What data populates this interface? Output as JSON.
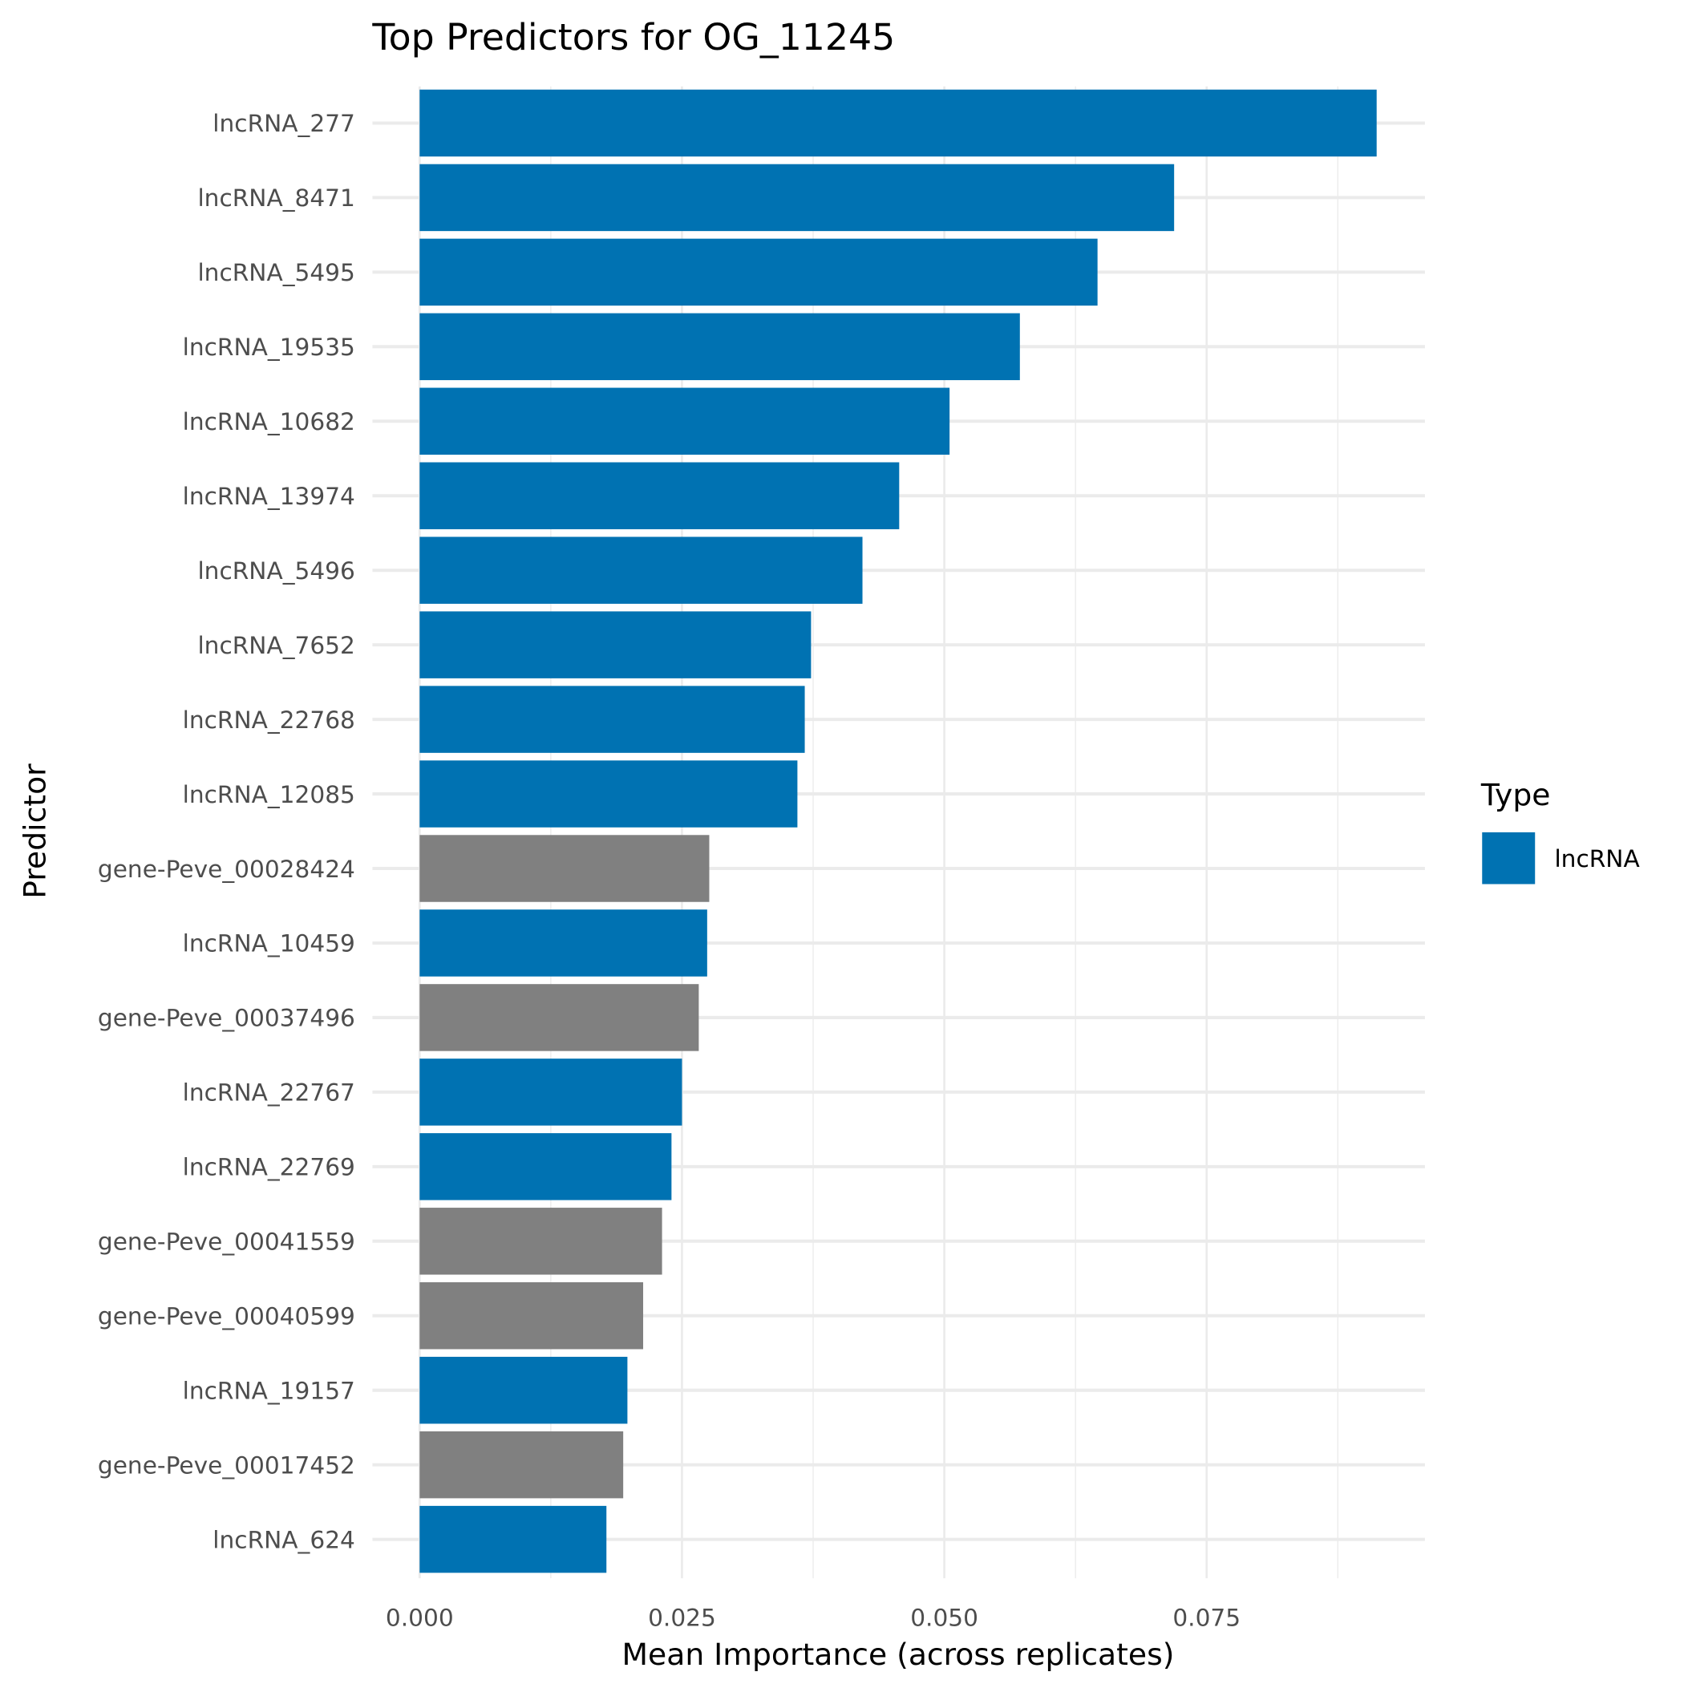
{
  "chart_data": {
    "type": "bar",
    "orientation": "horizontal",
    "title": "Top Predictors for OG_11245",
    "xlabel": "Mean Importance (across replicates)",
    "ylabel": "Predictor",
    "xlim": [
      -0.0045,
      0.0958
    ],
    "xticks": [
      0.0,
      0.025,
      0.05,
      0.075
    ],
    "xtick_labels": [
      "0.000",
      "0.025",
      "0.050",
      "0.075"
    ],
    "grid": true,
    "categories": [
      "lncRNA_277",
      "lncRNA_8471",
      "lncRNA_5495",
      "lncRNA_19535",
      "lncRNA_10682",
      "lncRNA_13974",
      "lncRNA_5496",
      "lncRNA_7652",
      "lncRNA_22768",
      "lncRNA_12085",
      "gene-Peve_00028424",
      "lncRNA_10459",
      "gene-Peve_00037496",
      "lncRNA_22767",
      "lncRNA_22769",
      "gene-Peve_00041559",
      "gene-Peve_00040599",
      "lncRNA_19157",
      "gene-Peve_00017452",
      "lncRNA_624"
    ],
    "values": [
      0.0912,
      0.0719,
      0.0646,
      0.0572,
      0.0505,
      0.0457,
      0.0422,
      0.0373,
      0.0367,
      0.036,
      0.0276,
      0.0274,
      0.0266,
      0.025,
      0.024,
      0.0231,
      0.0213,
      0.0198,
      0.0194,
      0.0178
    ],
    "types": [
      "lncRNA",
      "lncRNA",
      "lncRNA",
      "lncRNA",
      "lncRNA",
      "lncRNA",
      "lncRNA",
      "lncRNA",
      "lncRNA",
      "lncRNA",
      "gene",
      "lncRNA",
      "gene",
      "lncRNA",
      "lncRNA",
      "gene",
      "gene",
      "lncRNA",
      "gene",
      "lncRNA"
    ],
    "colors": {
      "lncRNA": "#0072B2",
      "gene": "#808080"
    },
    "legend": {
      "title": "Type",
      "position": "right",
      "entries": [
        {
          "label": "lncRNA",
          "color": "#0072B2"
        }
      ]
    }
  }
}
